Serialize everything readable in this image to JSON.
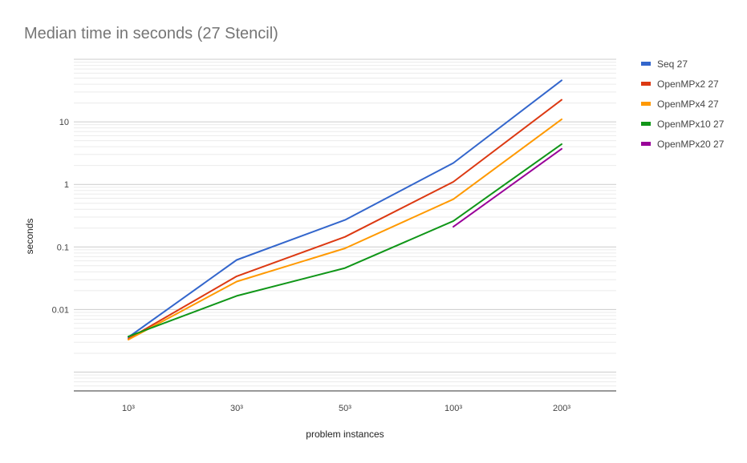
{
  "chart_data": {
    "type": "line",
    "title": "Median time in seconds (27 Stencil)",
    "xlabel": "problem instances",
    "ylabel": "seconds",
    "y_scale": "log",
    "ylim": [
      0.0005,
      100
    ],
    "y_ticks": [
      {
        "value": 0.01,
        "label": "0.01"
      },
      {
        "value": 0.1,
        "label": "0.1"
      },
      {
        "value": 1,
        "label": "1"
      },
      {
        "value": 10,
        "label": "10"
      }
    ],
    "categories": [
      "10³",
      "30³",
      "50³",
      "100³",
      "200³"
    ],
    "grid": true,
    "legend_position": "right",
    "series": [
      {
        "name": "Seq 27",
        "color": "#3366cc",
        "values": [
          0.0036,
          0.062,
          0.27,
          2.2,
          46
        ]
      },
      {
        "name": "OpenMPx2 27",
        "color": "#dc3912",
        "values": [
          0.0034,
          0.034,
          0.145,
          1.1,
          22.5
        ]
      },
      {
        "name": "OpenMPx4 27",
        "color": "#ff9900",
        "values": [
          0.0033,
          0.028,
          0.095,
          0.58,
          11
        ]
      },
      {
        "name": "OpenMPx10 27",
        "color": "#109618",
        "values": [
          0.0037,
          0.0165,
          0.046,
          0.26,
          4.4
        ]
      },
      {
        "name": "OpenMPx20 27",
        "color": "#990099",
        "values": [
          null,
          null,
          null,
          0.21,
          3.7
        ]
      }
    ]
  }
}
